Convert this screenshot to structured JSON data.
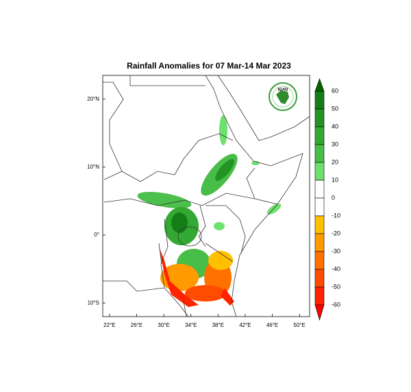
{
  "title": "Rainfall Anomalies for 07 Mar-14 Mar 2023",
  "logo": "IGAD",
  "map": {
    "xlim": [
      21,
      51.5
    ],
    "ylim": [
      -12,
      23.5
    ],
    "xticks": [
      {
        "value": 22,
        "label": "22°E"
      },
      {
        "value": 26,
        "label": "26°E"
      },
      {
        "value": 30,
        "label": "30°E"
      },
      {
        "value": 34,
        "label": "34°E"
      },
      {
        "value": 38,
        "label": "38°E"
      },
      {
        "value": 42,
        "label": "42°E"
      },
      {
        "value": 46,
        "label": "46°E"
      },
      {
        "value": 50,
        "label": "50°E"
      }
    ],
    "yticks": [
      {
        "value": 20,
        "label": "20°N"
      },
      {
        "value": 10,
        "label": "10°N"
      },
      {
        "value": 0,
        "label": "0°"
      },
      {
        "value": -10,
        "label": "10°S"
      }
    ]
  },
  "colorbar": {
    "ticks": [
      60,
      50,
      40,
      30,
      20,
      10,
      0,
      -10,
      -20,
      -30,
      -40,
      -50,
      -60
    ],
    "colors": [
      "#157d15",
      "#239323",
      "#33a833",
      "#48bd48",
      "#6ee06e",
      "#ffffff",
      "#ffffff",
      "#ffc000",
      "#ff9a00",
      "#ff7200",
      "#ff4c00",
      "#ff2400"
    ],
    "extend_colors": [
      "#006400",
      "#ff0000"
    ]
  }
}
